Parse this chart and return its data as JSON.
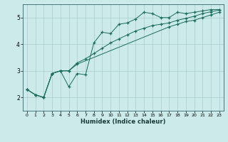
{
  "title": "",
  "xlabel": "Humidex (Indice chaleur)",
  "ylabel": "",
  "background_color": "#cceaea",
  "grid_color": "#aacccc",
  "line_color": "#1a6b5a",
  "xlim": [
    -0.5,
    23.5
  ],
  "ylim": [
    1.5,
    5.5
  ],
  "yticks": [
    2,
    3,
    4,
    5
  ],
  "xticks": [
    0,
    1,
    2,
    3,
    4,
    5,
    6,
    7,
    8,
    9,
    10,
    11,
    12,
    13,
    14,
    15,
    16,
    17,
    18,
    19,
    20,
    21,
    22,
    23
  ],
  "line1_x": [
    0,
    1,
    2,
    3,
    4,
    5,
    6,
    7,
    8,
    9,
    10,
    11,
    12,
    13,
    14,
    15,
    16,
    17,
    18,
    19,
    20,
    21,
    22,
    23
  ],
  "line1_y": [
    2.3,
    2.1,
    2.0,
    2.9,
    3.0,
    2.4,
    2.9,
    2.85,
    4.05,
    4.45,
    4.4,
    4.75,
    4.8,
    4.95,
    5.2,
    5.15,
    5.0,
    5.0,
    5.2,
    5.15,
    5.2,
    5.25,
    5.3,
    5.3
  ],
  "line2_x": [
    0,
    1,
    2,
    3,
    4,
    5,
    6,
    17,
    18,
    19,
    20,
    21,
    22,
    23
  ],
  "line2_y": [
    2.3,
    2.1,
    2.0,
    2.9,
    3.0,
    3.0,
    3.25,
    4.65,
    4.75,
    4.85,
    4.9,
    5.0,
    5.1,
    5.2
  ],
  "line3_x": [
    0,
    1,
    2,
    3,
    4,
    5,
    6,
    7,
    8,
    9,
    10,
    11,
    12,
    13,
    14,
    15,
    16,
    17,
    18,
    19,
    20,
    21,
    22,
    23
  ],
  "line3_y": [
    2.3,
    2.1,
    2.0,
    2.9,
    3.0,
    3.0,
    3.3,
    3.45,
    3.65,
    3.85,
    4.05,
    4.2,
    4.35,
    4.5,
    4.6,
    4.7,
    4.75,
    4.8,
    4.9,
    4.97,
    5.05,
    5.15,
    5.22,
    5.28
  ]
}
